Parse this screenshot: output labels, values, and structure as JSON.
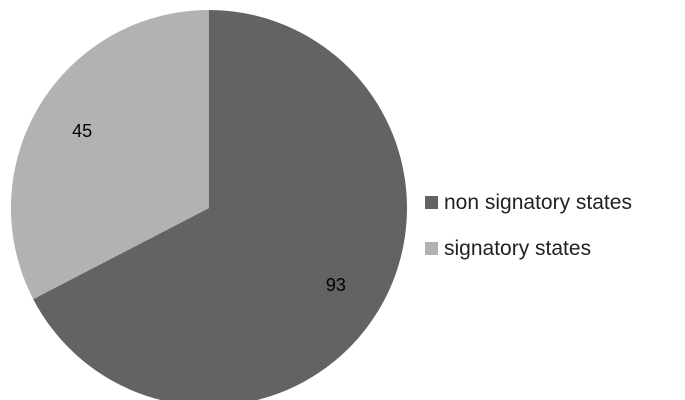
{
  "chart_data": {
    "type": "pie",
    "categories": [
      "non signatory states",
      "signatory states"
    ],
    "values": [
      93,
      45
    ],
    "data_labels": [
      "93",
      "45"
    ],
    "colors": [
      "#636363",
      "#b2b2b2"
    ],
    "start_angle_deg": 0,
    "direction": "clockwise",
    "legend_position": "right",
    "title": "",
    "xlabel": "",
    "ylabel": ""
  }
}
